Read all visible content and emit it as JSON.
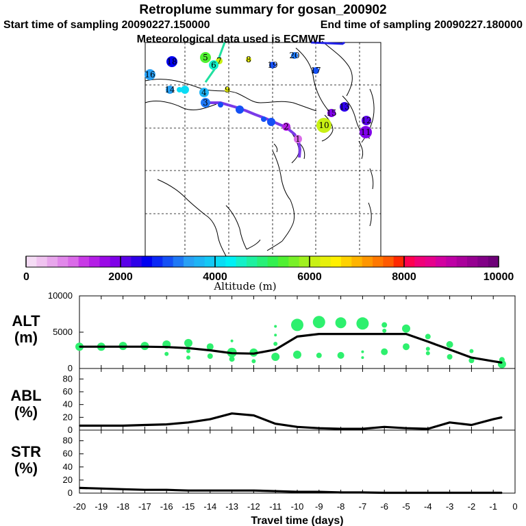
{
  "title": "Retroplume summary for gosan_200902",
  "start_label": "Start time of sampling 20090227.150000",
  "end_label": "End time of sampling 20090227.180000",
  "met_label": "Meteorological data used is ECMWF",
  "colorbar": {
    "title": "Altitude (m)",
    "range": [
      0,
      10000
    ],
    "ticks": [
      "0",
      "2000",
      "4000",
      "6000",
      "8000",
      "10000"
    ],
    "colors": [
      "#f5dcf5",
      "#f0c3f0",
      "#e8a6ec",
      "#e188ea",
      "#da6ae8",
      "#c83ae6",
      "#b41ee6",
      "#9a0ae6",
      "#7f00e8",
      "#5a00e8",
      "#2d00e8",
      "#0000f0",
      "#0a28f5",
      "#1450f5",
      "#1e78f5",
      "#28a0f5",
      "#1eb4f5",
      "#14c8f5",
      "#0adcf5",
      "#00f0f5",
      "#14f0c8",
      "#1ef0a0",
      "#28f078",
      "#32f050",
      "#50f032",
      "#78f028",
      "#a0f01e",
      "#c8f014",
      "#e6f00a",
      "#fff000",
      "#ffd200",
      "#ffb400",
      "#ff9600",
      "#ff7800",
      "#ff5a00",
      "#ff2800",
      "#ff0050",
      "#f00078",
      "#e6008c",
      "#d200a0",
      "#be00a5",
      "#aa009b",
      "#960091",
      "#820087",
      "#6e0078"
    ]
  },
  "map_markers": [
    {
      "label": "20",
      "alt": 3300
    },
    {
      "label": "19",
      "alt": 3000
    },
    {
      "label": "18",
      "alt": 2600
    },
    {
      "label": "17",
      "alt": 3100
    },
    {
      "label": "16",
      "alt": 3400
    },
    {
      "label": "15",
      "alt": 1800
    },
    {
      "label": "14",
      "alt": 3400
    },
    {
      "label": "13",
      "alt": 2300
    },
    {
      "label": "12",
      "alt": 2000
    },
    {
      "label": "11",
      "alt": 1800
    },
    {
      "label": "10",
      "alt": 6200
    },
    {
      "label": "9",
      "alt": 6300
    },
    {
      "label": "8",
      "alt": 6300
    },
    {
      "label": "7",
      "alt": 6100
    },
    {
      "label": "6",
      "alt": 4500
    },
    {
      "label": "5",
      "alt": 5500
    },
    {
      "label": "4",
      "alt": 3600
    },
    {
      "label": "3",
      "alt": 3300
    },
    {
      "label": "2",
      "alt": 1500
    },
    {
      "label": "1",
      "alt": 1100
    }
  ],
  "chart_data": [
    {
      "type": "line",
      "panel": "ALT",
      "ylabel_lines": [
        "ALT",
        "(m)"
      ],
      "x": [
        -20,
        -19,
        -18,
        -17,
        -16,
        -15,
        -14,
        -13,
        -12,
        -11,
        -10,
        -9,
        -8,
        -7,
        -6,
        -5,
        -4,
        -3,
        -2,
        -1,
        -0.6
      ],
      "values": [
        3000,
        3000,
        3000,
        3000,
        2950,
        2800,
        2500,
        2100,
        2050,
        2600,
        4400,
        4750,
        4750,
        4750,
        4750,
        4750,
        3700,
        2600,
        1500,
        1000,
        800
      ],
      "ylim": [
        0,
        10000
      ],
      "yticks": [
        "0",
        "5000",
        "10000"
      ],
      "clusters": [
        {
          "x": -20,
          "y": 3000,
          "r": 6
        },
        {
          "x": -19,
          "y": 3000,
          "r": 6
        },
        {
          "x": -18,
          "y": 3100,
          "r": 6
        },
        {
          "x": -17,
          "y": 3100,
          "r": 6
        },
        {
          "x": -16,
          "y": 3300,
          "r": 6
        },
        {
          "x": -16,
          "y": 2000,
          "r": 3
        },
        {
          "x": -15,
          "y": 3500,
          "r": 6
        },
        {
          "x": -15,
          "y": 2400,
          "r": 3
        },
        {
          "x": -15,
          "y": 1500,
          "r": 3
        },
        {
          "x": -14,
          "y": 3000,
          "r": 5
        },
        {
          "x": -14,
          "y": 1700,
          "r": 4
        },
        {
          "x": -13,
          "y": 2200,
          "r": 7
        },
        {
          "x": -13,
          "y": 1300,
          "r": 4
        },
        {
          "x": -13,
          "y": 3800,
          "r": 2
        },
        {
          "x": -12,
          "y": 2200,
          "r": 6
        },
        {
          "x": -12,
          "y": 1000,
          "r": 3
        },
        {
          "x": -11,
          "y": 3400,
          "r": 3
        },
        {
          "x": -11,
          "y": 1600,
          "r": 6
        },
        {
          "x": -11,
          "y": 4600,
          "r": 2
        },
        {
          "x": -11,
          "y": 5800,
          "r": 2
        },
        {
          "x": -10,
          "y": 6000,
          "r": 9
        },
        {
          "x": -10,
          "y": 1900,
          "r": 6
        },
        {
          "x": -9,
          "y": 6400,
          "r": 9
        },
        {
          "x": -9,
          "y": 1800,
          "r": 4
        },
        {
          "x": -8,
          "y": 6300,
          "r": 8
        },
        {
          "x": -8,
          "y": 1800,
          "r": 5
        },
        {
          "x": -7,
          "y": 6200,
          "r": 9
        },
        {
          "x": -7,
          "y": 1500,
          "r": 2
        },
        {
          "x": -7,
          "y": 2300,
          "r": 2
        },
        {
          "x": -6,
          "y": 6000,
          "r": 4
        },
        {
          "x": -6,
          "y": 5200,
          "r": 3
        },
        {
          "x": -6,
          "y": 2300,
          "r": 5
        },
        {
          "x": -5,
          "y": 5500,
          "r": 6
        },
        {
          "x": -5,
          "y": 3000,
          "r": 5
        },
        {
          "x": -4,
          "y": 4400,
          "r": 4
        },
        {
          "x": -4,
          "y": 2700,
          "r": 3
        },
        {
          "x": -4,
          "y": 2100,
          "r": 3
        },
        {
          "x": -3,
          "y": 3300,
          "r": 5
        },
        {
          "x": -3,
          "y": 1600,
          "r": 4
        },
        {
          "x": -2,
          "y": 2400,
          "r": 3
        },
        {
          "x": -2,
          "y": 1100,
          "r": 4
        },
        {
          "x": -0.6,
          "y": 1200,
          "r": 4
        },
        {
          "x": -0.6,
          "y": 600,
          "r": 6
        }
      ]
    },
    {
      "type": "line",
      "panel": "ABL",
      "ylabel_lines": [
        "ABL",
        "(%)"
      ],
      "x": [
        -20,
        -19,
        -18,
        -17,
        -16,
        -15,
        -14,
        -13,
        -12,
        -11,
        -10,
        -9,
        -8,
        -7,
        -6,
        -5,
        -4,
        -3,
        -2,
        -1,
        -0.6
      ],
      "values": [
        7,
        7,
        7,
        8,
        9,
        12,
        17,
        26,
        23,
        10,
        5,
        3,
        2,
        2,
        5,
        3,
        2,
        12,
        8,
        17,
        20
      ],
      "ylim": [
        0,
        90
      ],
      "yticks": [
        "0",
        "20",
        "40",
        "60",
        "80"
      ]
    },
    {
      "type": "line",
      "panel": "STR",
      "ylabel_lines": [
        "STR",
        "(%)"
      ],
      "x": [
        -20,
        -19,
        -18,
        -17,
        -16,
        -15,
        -14,
        -13,
        -12,
        -11,
        -10,
        -9,
        -8,
        -7,
        -6,
        -5,
        -4,
        -3,
        -2,
        -1,
        -0.6
      ],
      "values": [
        8,
        7,
        6,
        5,
        5,
        4,
        4,
        4,
        4,
        3,
        2,
        2,
        1,
        1,
        0.5,
        0.5,
        0.5,
        0.5,
        0.5,
        0.5,
        0.5
      ],
      "ylim": [
        0,
        90
      ],
      "yticks": [
        "0",
        "20",
        "40",
        "60",
        "80"
      ]
    }
  ],
  "xaxis": {
    "label": "Travel time (days)",
    "range": [
      -20,
      0
    ],
    "ticks": [
      "-20",
      "-19",
      "-18",
      "-17",
      "-16",
      "-15",
      "-14",
      "-13",
      "-12",
      "-11",
      "-10",
      "-9",
      "-8",
      "-7",
      "-6",
      "-5",
      "-4",
      "-3",
      "-2",
      "-1",
      "0"
    ]
  },
  "colors": {
    "cluster": "#2ef06e",
    "line": "#000000"
  }
}
